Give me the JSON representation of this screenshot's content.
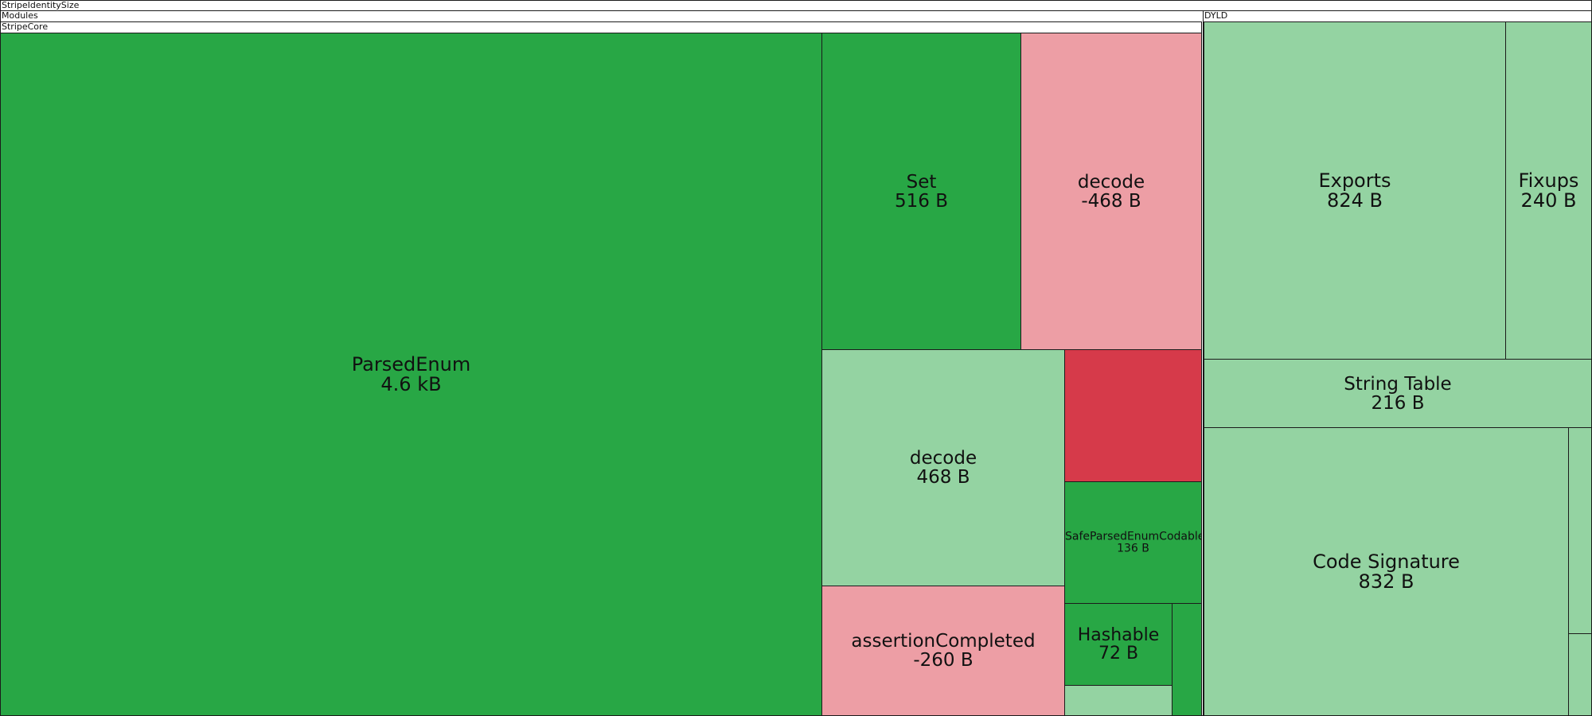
{
  "chart_data": {
    "type": "treemap",
    "colors": {
      "increase_strong": "#28a745",
      "increase_light": "#94d3a2",
      "decrease_light": "#ed9ea5",
      "decrease_strong": "#d63a4a",
      "border": "#1b1b1b"
    },
    "root": {
      "label": "StripeIdentitySize",
      "children": [
        {
          "label": "Modules",
          "children": [
            {
              "label": "StripeCore",
              "children": [
                {
                  "label": "ParsedEnum",
                  "value_text": "4.6 kB",
                  "change": "increase"
                },
                {
                  "label": "Set",
                  "value_text": "516 B",
                  "change": "increase"
                },
                {
                  "label": "decode",
                  "value_text": "-468 B",
                  "change": "decrease"
                },
                {
                  "label": "decode",
                  "value_text": "468 B",
                  "change": "increase"
                },
                {
                  "label": "",
                  "value_text": "",
                  "change": "decrease"
                },
                {
                  "label": "SafeParsedEnumCodable",
                  "value_text": "136 B",
                  "change": "increase"
                },
                {
                  "label": "assertionCompleted",
                  "value_text": "-260 B",
                  "change": "decrease"
                },
                {
                  "label": "Hashable",
                  "value_text": "72 B",
                  "change": "increase"
                },
                {
                  "label": "",
                  "value_text": "",
                  "change": "increase"
                },
                {
                  "label": "",
                  "value_text": "",
                  "change": "increase"
                }
              ]
            }
          ]
        },
        {
          "label": "DYLD",
          "children": [
            {
              "label": "Exports",
              "value_text": "824 B",
              "change": "increase"
            },
            {
              "label": "Fixups",
              "value_text": "240 B",
              "change": "increase"
            },
            {
              "label": "String Table",
              "value_text": "216 B",
              "change": "increase"
            },
            {
              "label": "Code Signature",
              "value_text": "832 B",
              "change": "increase"
            },
            {
              "label": "",
              "value_text": "",
              "change": "increase"
            },
            {
              "label": "",
              "value_text": "",
              "change": "increase"
            }
          ]
        }
      ]
    }
  }
}
